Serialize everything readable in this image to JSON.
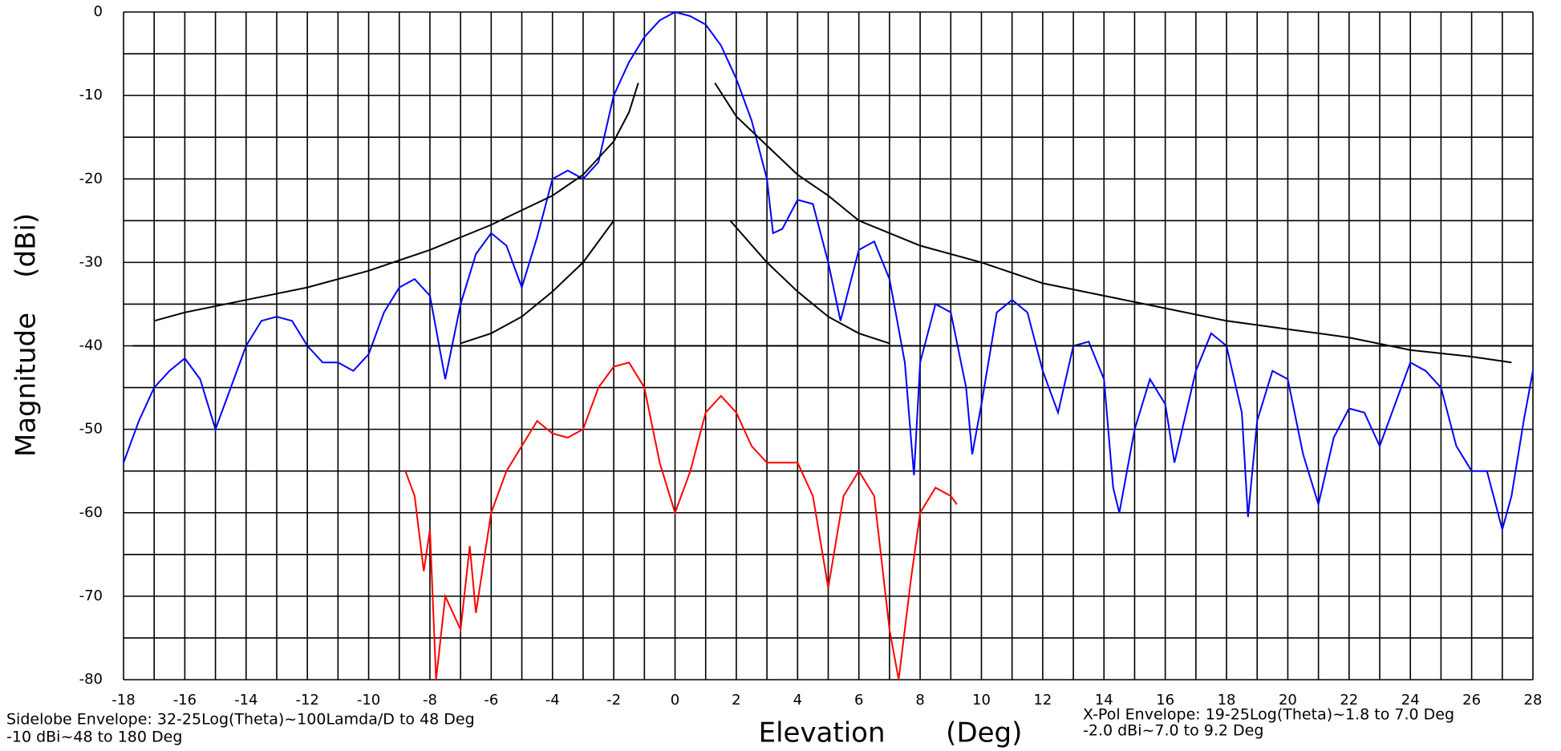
{
  "chart_data": {
    "type": "line",
    "x_label": "Elevation       (Deg)",
    "y_label": "Magnitude    (dBi)",
    "notes_left": [
      "Sidelobe Envelope: 32-25Log(Theta)~100Lamda/D to 48 Deg",
      "-10 dBi~48 to 180 Deg"
    ],
    "notes_right": [
      "X-Pol Envelope: 19-25Log(Theta)~1.8 to 7.0 Deg",
      "-2.0 dBi~7.0 to 9.2 Deg"
    ],
    "xlim": [
      -18,
      28
    ],
    "ylim": [
      -80,
      0
    ],
    "xticks": [
      -18,
      -16,
      -14,
      -12,
      -10,
      -8,
      -6,
      -4,
      -2,
      0,
      2,
      4,
      6,
      8,
      10,
      12,
      14,
      16,
      18,
      20,
      22,
      24,
      26,
      28
    ],
    "yticks": [
      0,
      -10,
      -20,
      -30,
      -40,
      -50,
      -60,
      -70,
      -80
    ],
    "grid": true,
    "minor_grid": true,
    "series": [
      {
        "color": "#0000ff",
        "x": [
          -18,
          -17.5,
          -17,
          -16.5,
          -16,
          -15.5,
          -15,
          -14.5,
          -14,
          -13.5,
          -13,
          -12.5,
          -12,
          -11.5,
          -11,
          -10.5,
          -10,
          -9.5,
          -9,
          -8.5,
          -8,
          -7.5,
          -7,
          -6.5,
          -6,
          -5.5,
          -5,
          -4.5,
          -4,
          -3.5,
          -3,
          -2.5,
          -2,
          -1.5,
          -1,
          -0.5,
          0,
          0.5,
          1,
          1.5,
          2,
          2.5,
          3,
          3.2,
          3.5,
          4,
          4.5,
          5,
          5.4,
          6,
          6.5,
          7,
          7.5,
          7.8,
          8,
          8.5,
          9,
          9.5,
          9.7,
          10,
          10.5,
          11,
          11.5,
          12,
          12.5,
          13,
          13.5,
          14,
          14.3,
          14.5,
          15,
          15.5,
          16,
          16.3,
          17,
          17.5,
          18,
          18.5,
          18.7,
          19,
          19.5,
          20,
          20.5,
          21,
          21.5,
          22,
          22.5,
          23,
          23.5,
          24,
          24.5,
          25,
          25.5,
          26,
          26.5,
          27,
          27.3,
          27.7,
          28
        ],
        "values": [
          -54,
          -49,
          -45,
          -43,
          -41.5,
          -44,
          -50,
          -45,
          -40,
          -37,
          -36.5,
          -37,
          -40,
          -42,
          -42,
          -43,
          -41,
          -36,
          -33,
          -32,
          -34,
          -44,
          -35,
          -29,
          -26.5,
          -28,
          -33,
          -27,
          -20,
          -19,
          -20,
          -18,
          -10,
          -6,
          -3,
          -1,
          0,
          -0.5,
          -1.5,
          -4,
          -8,
          -13,
          -20,
          -26.5,
          -26,
          -22.5,
          -23,
          -30,
          -37,
          -28.5,
          -27.5,
          -32,
          -42,
          -55.5,
          -42,
          -35,
          -36,
          -45,
          -53,
          -47,
          -36,
          -34.5,
          -36,
          -43,
          -48,
          -40,
          -39.5,
          -44,
          -57,
          -60,
          -50,
          -44,
          -47,
          -54,
          -43,
          -38.5,
          -40,
          -48,
          -60.5,
          -49,
          -43,
          -44,
          -53,
          -59,
          -51,
          -47.5,
          -48,
          -52,
          -47,
          -42,
          -43,
          -45,
          -52,
          -55,
          -55,
          -62,
          -58,
          -49,
          -43
        ]
      },
      {
        "color": "#ff0000",
        "x": [
          -8.8,
          -8.5,
          -8.2,
          -8,
          -7.8,
          -7.5,
          -7,
          -6.7,
          -6.5,
          -6,
          -5.5,
          -5,
          -4.5,
          -4,
          -3.5,
          -3,
          -2.5,
          -2,
          -1.5,
          -1,
          -0.5,
          0,
          0.5,
          1,
          1.5,
          2,
          2.5,
          3,
          4,
          4.5,
          5,
          5.5,
          6,
          6.5,
          7,
          7.3,
          7.7,
          8,
          8.5,
          9,
          9.2
        ],
        "values": [
          -55,
          -58,
          -67,
          -62,
          -80,
          -70,
          -74,
          -64,
          -72,
          -60,
          -55,
          -52,
          -49,
          -50.5,
          -51,
          -50,
          -45,
          -42.5,
          -42,
          -45,
          -54,
          -60,
          -55,
          -48,
          -46,
          -48,
          -52,
          -54,
          -54,
          -58,
          -69,
          -58,
          -55,
          -58,
          -74,
          -80,
          -68,
          -60,
          -57,
          -58,
          -59
        ]
      },
      {
        "color": "#000000",
        "x": [
          -17,
          -16,
          -14,
          -12,
          -10,
          -8,
          -6,
          -4,
          -3,
          -2,
          -1.5,
          -1.2
        ],
        "values": [
          -37,
          -36,
          -34.5,
          -33,
          -31,
          -28.5,
          -25.5,
          -22,
          -19.5,
          -15.5,
          -12,
          -8.5
        ]
      },
      {
        "color": "#000000",
        "x": [
          1.3,
          2,
          3,
          4,
          5,
          6,
          8,
          10,
          12,
          14,
          16,
          18,
          20,
          22,
          24,
          26,
          27.3
        ],
        "values": [
          -8.5,
          -12.5,
          -16,
          -19.5,
          -22,
          -25,
          -28,
          -30,
          -32.5,
          -34,
          -35.5,
          -37,
          -38,
          -39,
          -40.5,
          -41.3,
          -42
        ]
      },
      {
        "color": "#000000",
        "x": [
          -7,
          -6,
          -5,
          -4,
          -3,
          -2
        ],
        "values": [
          -39.7,
          -38.5,
          -36.5,
          -33.5,
          -30,
          -25
        ]
      },
      {
        "color": "#000000",
        "x": [
          1.8,
          3,
          4,
          5,
          6,
          7
        ],
        "values": [
          -25,
          -30,
          -33.5,
          -36.5,
          -38.5,
          -39.7
        ]
      },
      {
        "color": "#000000",
        "x": [
          -17.7,
          28
        ],
        "values": [
          -40,
          -40
        ]
      }
    ]
  }
}
